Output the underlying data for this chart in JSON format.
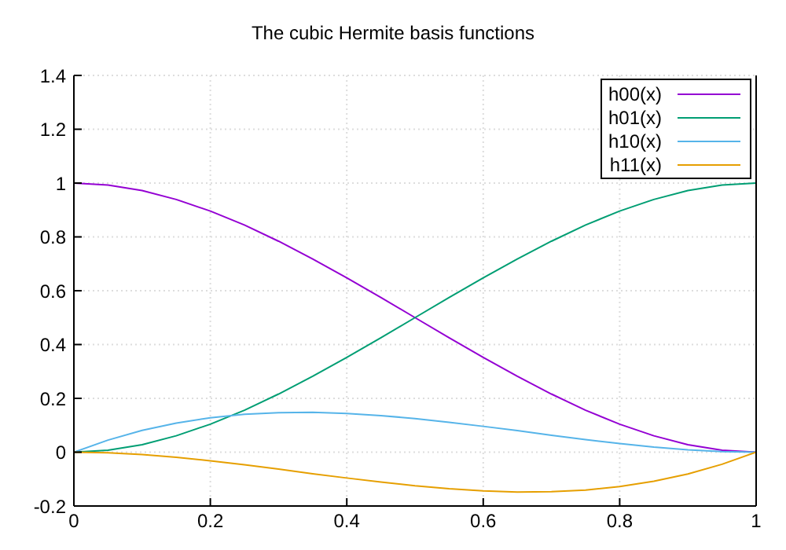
{
  "chart_data": {
    "type": "line",
    "title": "The cubic Hermite basis functions",
    "x": [
      0,
      0.05,
      0.1,
      0.15,
      0.2,
      0.25,
      0.3,
      0.35,
      0.4,
      0.45,
      0.5,
      0.55,
      0.6,
      0.65,
      0.7,
      0.75,
      0.8,
      0.85,
      0.9,
      0.95,
      1
    ],
    "series": [
      {
        "name": "h00(x)",
        "color": "#9400d3",
        "values": [
          1,
          0.993,
          0.972,
          0.939,
          0.896,
          0.844,
          0.784,
          0.718,
          0.648,
          0.575,
          0.5,
          0.425,
          0.352,
          0.282,
          0.216,
          0.156,
          0.104,
          0.061,
          0.028,
          0.007,
          0
        ]
      },
      {
        "name": "h01(x)",
        "color": "#009e73",
        "values": [
          0,
          0.007,
          0.028,
          0.061,
          0.104,
          0.156,
          0.216,
          0.282,
          0.352,
          0.425,
          0.5,
          0.575,
          0.648,
          0.718,
          0.784,
          0.844,
          0.896,
          0.939,
          0.972,
          0.993,
          1
        ]
      },
      {
        "name": "h10(x)",
        "color": "#56b4e9",
        "values": [
          0,
          0.045,
          0.081,
          0.108,
          0.128,
          0.141,
          0.147,
          0.148,
          0.144,
          0.136,
          0.125,
          0.111,
          0.096,
          0.08,
          0.063,
          0.047,
          0.032,
          0.019,
          0.009,
          0.002,
          0
        ]
      },
      {
        "name": "h11(x)",
        "color": "#e69f00",
        "values": [
          0,
          -0.002,
          -0.009,
          -0.019,
          -0.032,
          -0.047,
          -0.063,
          -0.08,
          -0.096,
          -0.111,
          -0.125,
          -0.136,
          -0.144,
          -0.148,
          -0.147,
          -0.141,
          -0.128,
          -0.108,
          -0.081,
          -0.045,
          0
        ]
      }
    ],
    "xlim": [
      0,
      1
    ],
    "xticks": [
      0,
      0.2,
      0.4,
      0.6,
      0.8,
      1
    ],
    "ylim": [
      -0.2,
      1.4
    ],
    "yticks": [
      -0.2,
      0,
      0.2,
      0.4,
      0.6,
      0.8,
      1,
      1.2,
      1.4
    ],
    "grid": true,
    "legend": "top right",
    "marker": "none",
    "line_style": "solid"
  }
}
